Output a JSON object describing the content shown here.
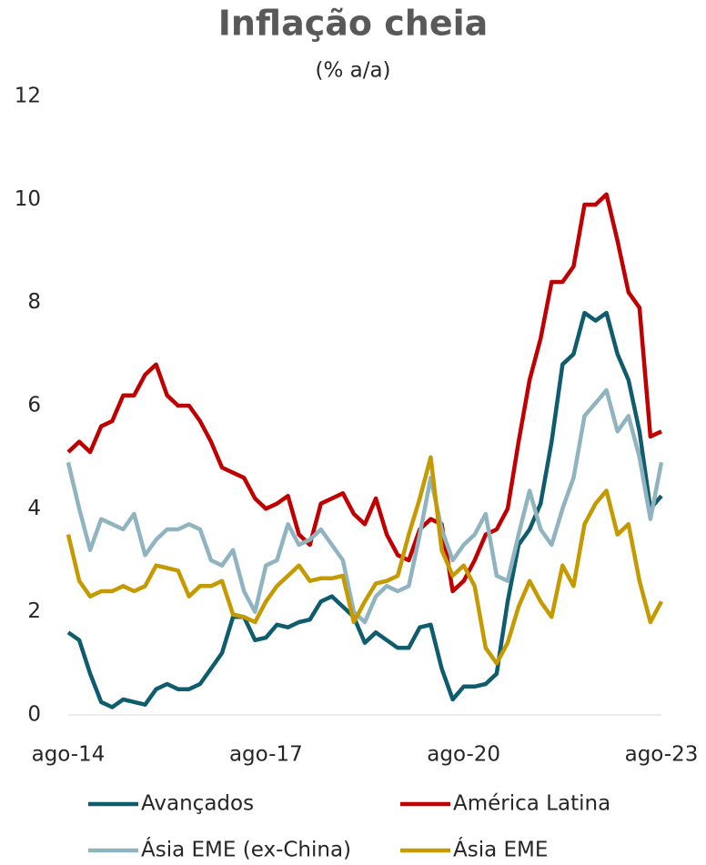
{
  "chart_data": {
    "type": "line",
    "title": "Inflação cheia",
    "subtitle": "(% a/a)",
    "categories": [
      "ago-14",
      null,
      null,
      null,
      null,
      null,
      null,
      null,
      null,
      null,
      null,
      null,
      null,
      null,
      null,
      null,
      null,
      null,
      "ago-17",
      null,
      null,
      null,
      null,
      null,
      null,
      null,
      null,
      null,
      null,
      null,
      null,
      null,
      null,
      null,
      null,
      null,
      "ago-20",
      null,
      null,
      null,
      null,
      null,
      null,
      null,
      null,
      null,
      null,
      null,
      null,
      null,
      null,
      null,
      null,
      null,
      "ago-23"
    ],
    "ylim": [
      0,
      12
    ],
    "yticks": [
      0,
      2,
      4,
      6,
      8,
      10,
      12
    ],
    "grid": false,
    "legend": "bottom",
    "series": [
      {
        "name": "Avançados",
        "color": "#0e5c6e",
        "values": [
          1.6,
          1.45,
          0.8,
          0.25,
          0.15,
          0.3,
          0.25,
          0.2,
          0.5,
          0.6,
          0.5,
          0.5,
          0.6,
          0.9,
          1.2,
          1.9,
          1.9,
          1.45,
          1.5,
          1.75,
          1.7,
          1.8,
          1.85,
          2.2,
          2.3,
          2.1,
          1.9,
          1.4,
          1.6,
          1.45,
          1.3,
          1.3,
          1.7,
          1.75,
          0.9,
          0.3,
          0.55,
          0.55,
          0.6,
          0.8,
          2.2,
          3.3,
          3.6,
          4.1,
          5.3,
          6.8,
          7.0,
          7.8,
          7.65,
          7.8,
          7.0,
          6.5,
          5.5,
          4.0,
          4.25
        ]
      },
      {
        "name": "América Latina",
        "color": "#c00000",
        "values": [
          5.1,
          5.3,
          5.1,
          5.6,
          5.7,
          6.2,
          6.2,
          6.6,
          6.8,
          6.2,
          6.0,
          6.0,
          5.7,
          5.3,
          4.8,
          4.7,
          4.6,
          4.2,
          4.0,
          4.1,
          4.25,
          3.5,
          3.3,
          4.1,
          4.2,
          4.3,
          3.9,
          3.7,
          4.2,
          3.5,
          3.1,
          3.0,
          3.6,
          3.8,
          3.7,
          2.4,
          2.6,
          3.0,
          3.5,
          3.6,
          4.0,
          5.3,
          6.5,
          7.3,
          8.4,
          8.4,
          8.7,
          9.9,
          9.9,
          10.1,
          9.2,
          8.2,
          7.9,
          5.4,
          5.5
        ]
      },
      {
        "name": "Ásia EME (ex-China)",
        "color": "#8fb4c0",
        "values": [
          4.9,
          4.0,
          3.2,
          3.8,
          3.7,
          3.6,
          3.9,
          3.1,
          3.4,
          3.6,
          3.6,
          3.7,
          3.6,
          3.0,
          2.9,
          3.2,
          2.4,
          2.0,
          2.9,
          3.0,
          3.7,
          3.3,
          3.4,
          3.6,
          3.3,
          3.0,
          2.0,
          1.8,
          2.3,
          2.5,
          2.4,
          2.5,
          3.5,
          4.6,
          3.6,
          3.0,
          3.3,
          3.5,
          3.9,
          2.7,
          2.6,
          3.5,
          4.35,
          3.6,
          3.3,
          4.0,
          4.6,
          5.8,
          6.05,
          6.3,
          5.5,
          5.8,
          5.0,
          3.8,
          4.9
        ]
      },
      {
        "name": "Ásia EME",
        "color": "#c49a00",
        "values": [
          3.5,
          2.6,
          2.3,
          2.4,
          2.4,
          2.5,
          2.4,
          2.5,
          2.9,
          2.85,
          2.8,
          2.3,
          2.5,
          2.5,
          2.6,
          1.95,
          1.9,
          1.8,
          2.2,
          2.5,
          2.7,
          2.9,
          2.6,
          2.65,
          2.65,
          2.7,
          1.8,
          2.2,
          2.55,
          2.6,
          2.7,
          3.5,
          4.2,
          5.0,
          3.2,
          2.7,
          2.9,
          2.5,
          1.3,
          1.0,
          1.4,
          2.1,
          2.6,
          2.2,
          1.9,
          2.9,
          2.5,
          3.7,
          4.1,
          4.35,
          3.5,
          3.7,
          2.6,
          1.8,
          2.2
        ]
      }
    ]
  }
}
